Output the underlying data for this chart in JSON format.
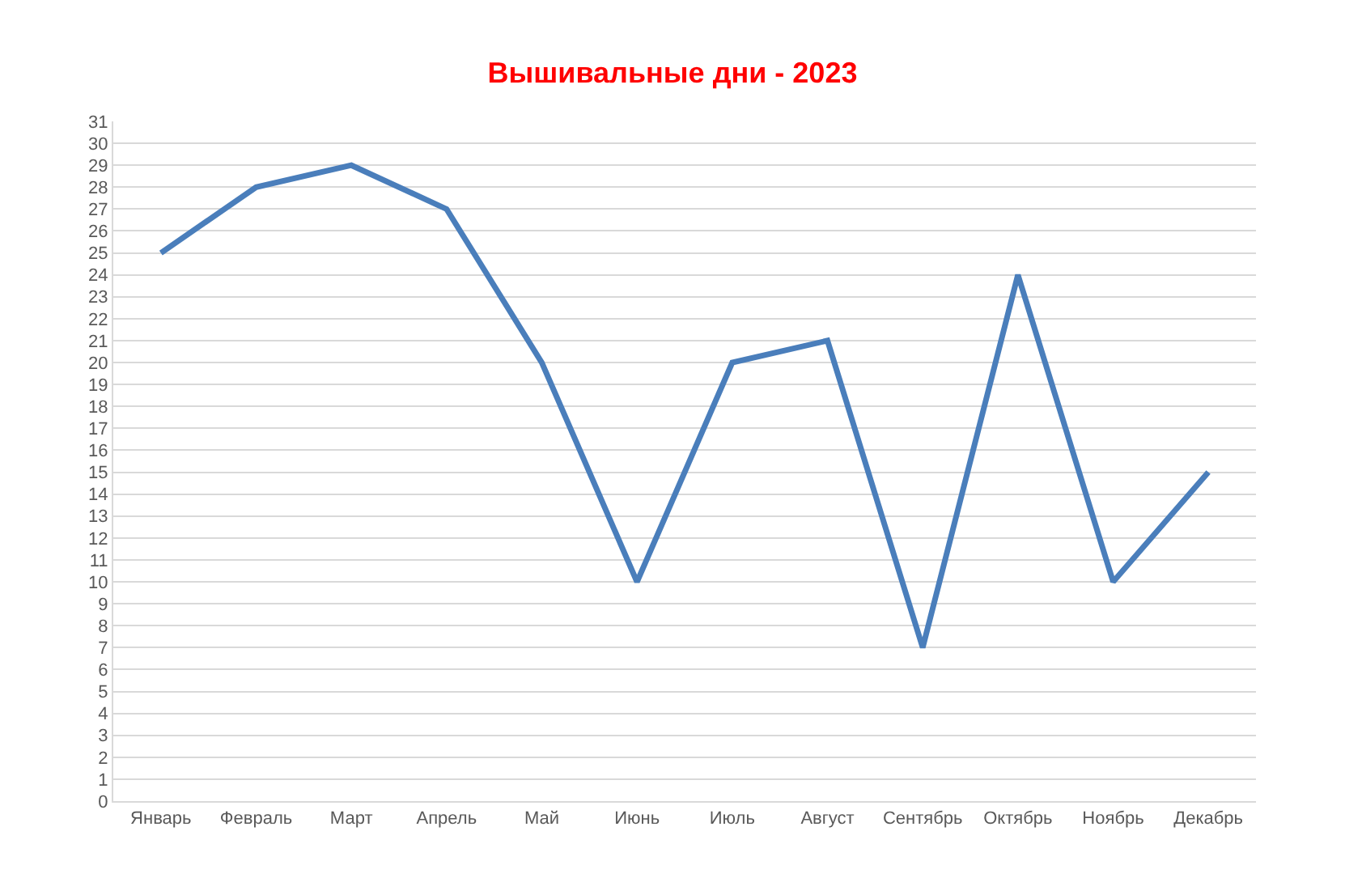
{
  "chart_data": {
    "type": "line",
    "title": "Вышивальные дни - 2023",
    "categories": [
      "Январь",
      "Февраль",
      "Март",
      "Апрель",
      "Май",
      "Июнь",
      "Июль",
      "Август",
      "Сентябрь",
      "Октябрь",
      "Ноябрь",
      "Декабрь"
    ],
    "series": [
      {
        "color": "#4a7ebb",
        "values": [
          25,
          28,
          29,
          27,
          20,
          10,
          20,
          21,
          7,
          24,
          10,
          15
        ]
      }
    ],
    "ylim": [
      0,
      31
    ],
    "yticks": [
      0,
      1,
      2,
      3,
      4,
      5,
      6,
      7,
      8,
      9,
      10,
      11,
      12,
      13,
      14,
      15,
      16,
      17,
      18,
      19,
      20,
      21,
      22,
      23,
      24,
      25,
      26,
      27,
      28,
      29,
      30,
      31
    ],
    "grid": "y",
    "marker": "none",
    "line_style": "solid"
  }
}
